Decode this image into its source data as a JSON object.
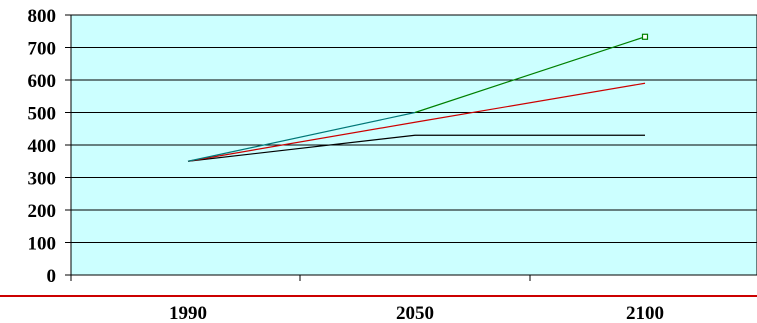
{
  "chart_data": {
    "type": "line",
    "categories": [
      "1990",
      "2050",
      "2100"
    ],
    "y_ticks": [
      "0",
      "100",
      "200",
      "300",
      "400",
      "500",
      "600",
      "700",
      "800"
    ],
    "ylim": [
      0,
      800
    ],
    "grid": true,
    "plot_background": "#CCFFFF",
    "series": [
      {
        "color": "#000000",
        "values": [
          350,
          430,
          430
        ],
        "marker_last": false
      },
      {
        "color": "#CC0000",
        "values": [
          350,
          470,
          590
        ],
        "marker_last": false
      },
      {
        "color": "#007777",
        "values": [
          350,
          500,
          null
        ],
        "marker_last": false
      },
      {
        "color": "#008000",
        "values": [
          null,
          500,
          733
        ],
        "marker_last": true
      }
    ],
    "separator_color": "#CC0000"
  }
}
